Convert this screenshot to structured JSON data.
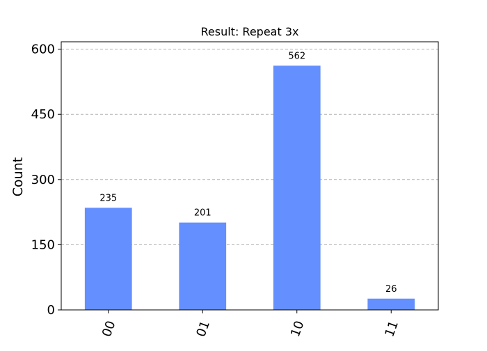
{
  "chart_data": {
    "type": "bar",
    "title": "Result: Repeat 3x",
    "xlabel": "",
    "ylabel": "Count",
    "categories": [
      "00",
      "01",
      "10",
      "11"
    ],
    "values": [
      235,
      201,
      562,
      26
    ],
    "ylim": [
      0,
      617
    ],
    "yticks": [
      0,
      150,
      300,
      450,
      600
    ],
    "grid": true,
    "bar_color": "#648fff",
    "show_value_labels": true
  }
}
